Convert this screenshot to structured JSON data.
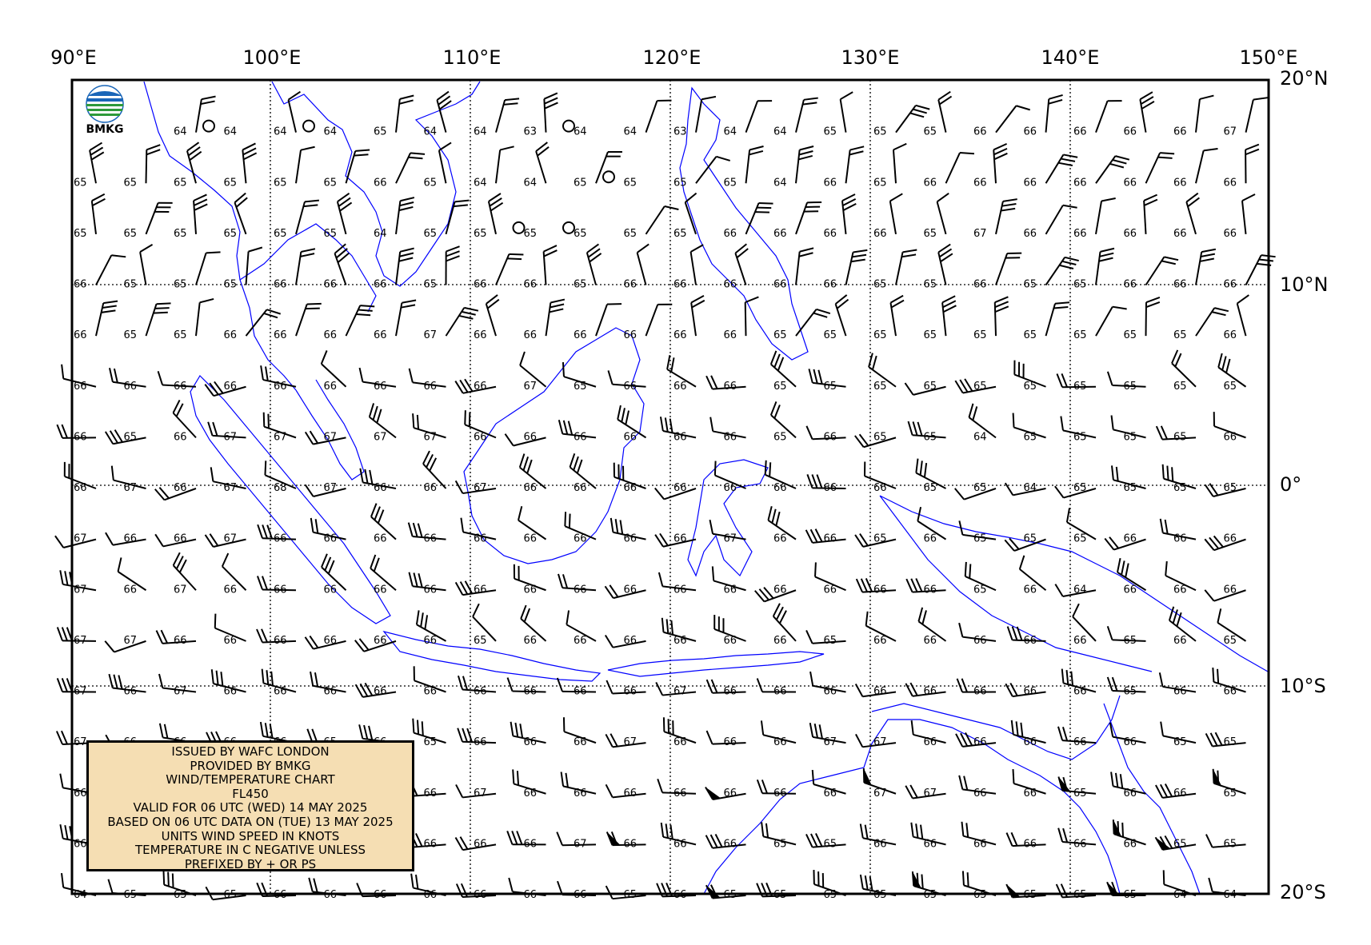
{
  "map": {
    "lon_labels": [
      "90°E",
      "100°E",
      "110°E",
      "120°E",
      "130°E",
      "140°E",
      "150°E"
    ],
    "lat_labels": [
      "20°N",
      "10°N",
      "0°",
      "10°S",
      "20°S"
    ]
  },
  "logo": {
    "text": "BMKG",
    "icon": "bmkg-logo-icon"
  },
  "info_box": {
    "lines": [
      "ISSUED BY WAFC LONDON",
      "PROVIDED BY BMKG",
      "WIND/TEMPERATURE CHART",
      "FL450",
      "VALID FOR 06 UTC (WED) 14 MAY 2025",
      "BASED ON 06 UTC DATA ON (TUE) 13 MAY 2025",
      "UNITS WIND SPEED IN KNOTS",
      "TEMPERATURE IN C NEGATIVE UNLESS",
      "PREFIXED BY + OR PS"
    ]
  },
  "colors": {
    "coastline": "#0000ff",
    "info_box_bg": "#f5deb3",
    "grid": "#000000"
  },
  "temperatures": [
    [
      "",
      "",
      "64",
      "64",
      "64",
      "64",
      "65",
      "64",
      "64",
      "63",
      "64",
      "64",
      "63",
      "64",
      "64",
      "65",
      "65",
      "65",
      "66",
      "66",
      "66",
      "66",
      "66",
      "67"
    ],
    [
      "65",
      "65",
      "65",
      "65",
      "65",
      "65",
      "66",
      "65",
      "64",
      "64",
      "65",
      "65",
      "65",
      "65",
      "64",
      "66",
      "65",
      "66",
      "66",
      "66",
      "66",
      "66",
      "66",
      "66"
    ],
    [
      "65",
      "65",
      "65",
      "65",
      "65",
      "65",
      "64",
      "65",
      "65",
      "65",
      "65",
      "65",
      "65",
      "66",
      "66",
      "66",
      "66",
      "65",
      "67",
      "66",
      "66",
      "66",
      "66",
      "66"
    ],
    [
      "66",
      "65",
      "65",
      "65",
      "66",
      "66",
      "66",
      "65",
      "66",
      "66",
      "65",
      "66",
      "66",
      "66",
      "66",
      "66",
      "65",
      "65",
      "66",
      "65",
      "65",
      "66",
      "66",
      "66"
    ],
    [
      "66",
      "65",
      "65",
      "66",
      "66",
      "66",
      "66",
      "67",
      "66",
      "66",
      "66",
      "66",
      "66",
      "66",
      "65",
      "65",
      "65",
      "65",
      "65",
      "65",
      "65",
      "65",
      "65",
      "66"
    ],
    [
      "66",
      "66",
      "66",
      "66",
      "66",
      "66",
      "66",
      "66",
      "66",
      "67",
      "65",
      "66",
      "66",
      "66",
      "65",
      "65",
      "65",
      "65",
      "65",
      "65",
      "65",
      "65",
      "65",
      "65"
    ],
    [
      "66",
      "65",
      "66",
      "67",
      "67",
      "67",
      "67",
      "67",
      "66",
      "66",
      "66",
      "66",
      "66",
      "66",
      "65",
      "66",
      "65",
      "65",
      "64",
      "65",
      "65",
      "65",
      "65",
      "66"
    ],
    [
      "66",
      "67",
      "66",
      "67",
      "68",
      "67",
      "66",
      "66",
      "67",
      "66",
      "66",
      "66",
      "66",
      "66",
      "66",
      "66",
      "66",
      "65",
      "65",
      "64",
      "65",
      "65",
      "65",
      "65"
    ],
    [
      "67",
      "66",
      "66",
      "67",
      "66",
      "66",
      "66",
      "66",
      "66",
      "66",
      "66",
      "66",
      "66",
      "67",
      "66",
      "66",
      "65",
      "66",
      "65",
      "65",
      "65",
      "66",
      "66",
      "66"
    ],
    [
      "67",
      "66",
      "67",
      "66",
      "66",
      "66",
      "66",
      "66",
      "66",
      "66",
      "66",
      "66",
      "66",
      "66",
      "66",
      "66",
      "66",
      "66",
      "65",
      "66",
      "64",
      "66",
      "66",
      "66"
    ],
    [
      "67",
      "67",
      "66",
      "66",
      "66",
      "66",
      "66",
      "66",
      "65",
      "66",
      "66",
      "66",
      "66",
      "66",
      "66",
      "65",
      "66",
      "66",
      "66",
      "66",
      "66",
      "65",
      "66",
      "65"
    ],
    [
      "67",
      "66",
      "67",
      "66",
      "66",
      "66",
      "66",
      "66",
      "66",
      "66",
      "66",
      "66",
      "67",
      "66",
      "66",
      "66",
      "66",
      "66",
      "66",
      "66",
      "66",
      "65",
      "66",
      "66"
    ],
    [
      "67",
      "66",
      "66",
      "66",
      "66",
      "65",
      "66",
      "65",
      "66",
      "66",
      "66",
      "67",
      "66",
      "66",
      "66",
      "67",
      "67",
      "66",
      "66",
      "66",
      "66",
      "66",
      "65",
      "65"
    ],
    [
      "66",
      "",
      "",
      "",
      "",
      "",
      "",
      "66",
      "67",
      "66",
      "66",
      "66",
      "66",
      "66",
      "66",
      "66",
      "67",
      "67",
      "66",
      "66",
      "65",
      "66",
      "66",
      "65"
    ],
    [
      "66",
      "",
      "",
      "",
      "",
      "",
      "",
      "66",
      "66",
      "66",
      "67",
      "66",
      "66",
      "66",
      "65",
      "65",
      "66",
      "66",
      "66",
      "66",
      "66",
      "66",
      "65",
      "65"
    ],
    [
      "64",
      "65",
      "65",
      "65",
      "66",
      "66",
      "66",
      "66",
      "66",
      "66",
      "66",
      "65",
      "66",
      "65",
      "65",
      "65",
      "65",
      "65",
      "65",
      "65",
      "65",
      "65",
      "64",
      "64"
    ]
  ],
  "calm_points": [
    {
      "lon": 97,
      "lat": 17.5
    },
    {
      "lon": 102,
      "lat": 17.5
    },
    {
      "lon": 115,
      "lat": 17.5
    },
    {
      "lon": 117,
      "lat": 15
    },
    {
      "lon": 112.5,
      "lat": 12.5
    },
    {
      "lon": 115,
      "lat": 12.5
    }
  ]
}
